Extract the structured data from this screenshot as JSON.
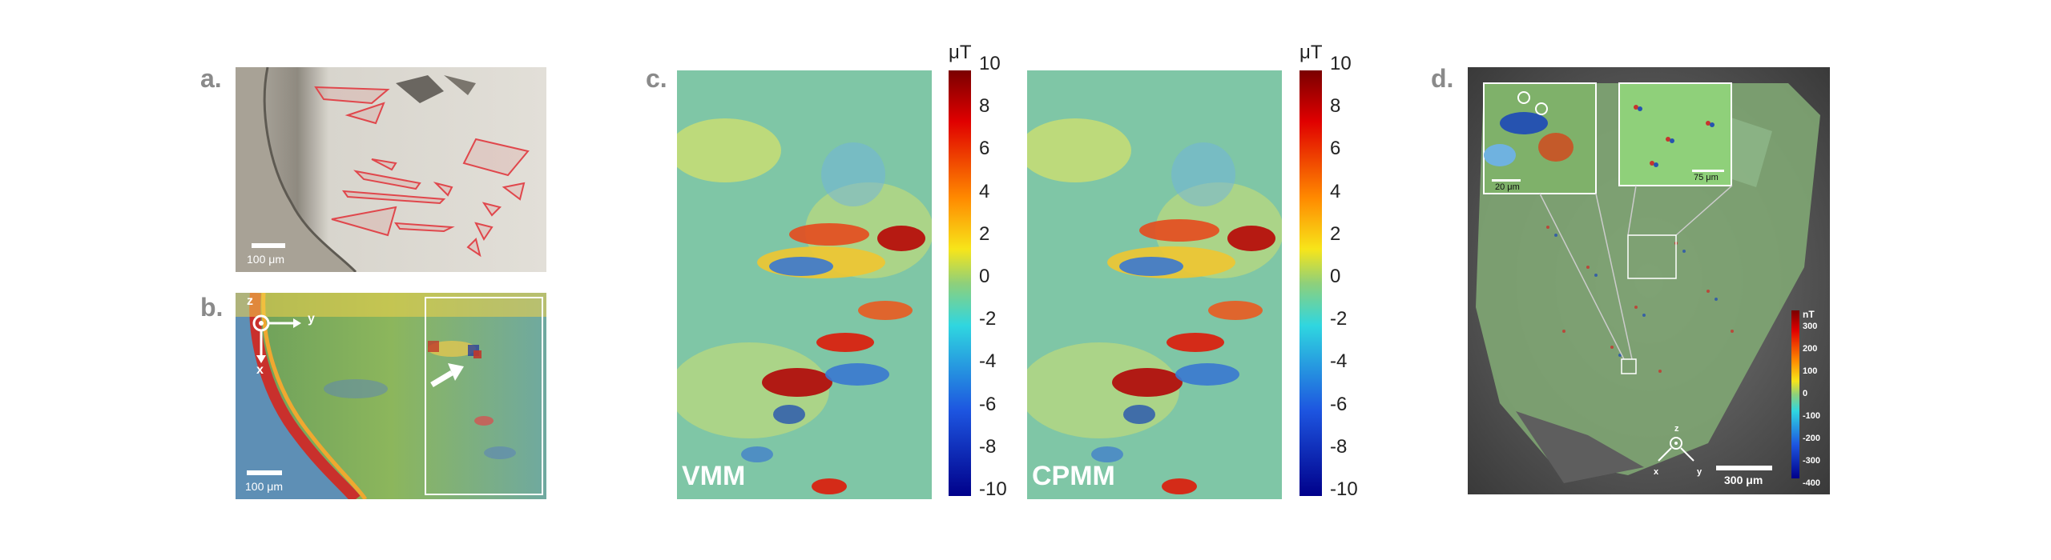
{
  "panels": {
    "a": {
      "letter": "a.",
      "scale_label": "100 μm"
    },
    "b": {
      "letter": "b.",
      "scale_label": "100 μm",
      "axis_z": "z",
      "axis_y": "y",
      "axis_x": "x"
    },
    "c": {
      "letter": "c.",
      "left_map_label": "VMM",
      "right_map_label": "CPMM",
      "colorbar_unit": "μT",
      "colorbar_ticks": [
        "10",
        "8",
        "6",
        "4",
        "2",
        "0",
        "-2",
        "-4",
        "-6",
        "-8",
        "-10"
      ]
    },
    "d": {
      "letter": "d.",
      "inset1_scale_label": "20 μm",
      "inset2_scale_label": "75 μm",
      "scale_label": "300 μm",
      "colorbar_unit": "nT",
      "colorbar_ticks": [
        "300",
        "200",
        "100",
        "0",
        "-100",
        "-200",
        "-300",
        "-400"
      ],
      "axis_z": "z",
      "axis_x": "x",
      "axis_y": "y"
    }
  },
  "colors": {
    "panel_letter": "#8a8a8a",
    "outline_red": "#e0474c"
  },
  "icons": [
    "arrow-icon",
    "axis-icon",
    "circle-marker-icon"
  ]
}
